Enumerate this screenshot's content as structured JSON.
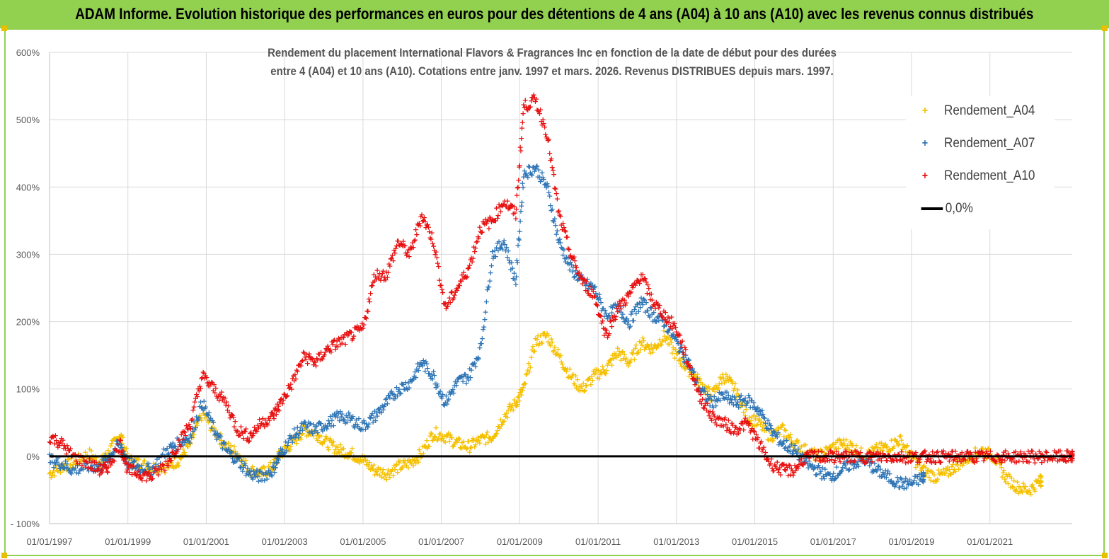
{
  "banner": {
    "title": "ADAM Informe. Evolution historique des performances en euros pour des détentions de 4 ans (A04) à 10 ans (A10) avec les revenus connus distribués"
  },
  "chart_data": {
    "type": "scatter",
    "title_line1": "Rendement du placement International Flavors & Fragrances Inc en fonction de la date de début pour des durées",
    "title_line2": "entre 4 (A04) et 10 ans (A10). Cotations entre janv. 1997 et mars. 2026. Revenus DISTRIBUES depuis mars. 1997.",
    "xlabel": "",
    "ylabel": "",
    "xlim": [
      1997.0,
      2023.1
    ],
    "ylim": [
      -100,
      600
    ],
    "y_ticks": [
      -100,
      0,
      100,
      200,
      300,
      400,
      500,
      600
    ],
    "y_tick_labels": [
      "- 100%",
      "0%",
      "100%",
      "200%",
      "300%",
      "400%",
      "500%",
      "600%"
    ],
    "x_ticks": [
      1997,
      1999,
      2001,
      2003,
      2005,
      2007,
      2009,
      2011,
      2013,
      2015,
      2017,
      2019,
      2021
    ],
    "x_tick_labels": [
      "01/01/1997",
      "01/01/1999",
      "01/01/2001",
      "01/01/2003",
      "01/01/2005",
      "01/01/2007",
      "01/01/2009",
      "01/01/2011",
      "01/01/2013",
      "01/01/2015",
      "01/01/2017",
      "01/01/2019",
      "01/01/2021"
    ],
    "legend_position": "top-right",
    "series": [
      {
        "name": "Rendement_A04",
        "color": "#f5c000",
        "x": [
          1997.0,
          1997.3,
          1997.6,
          1998.0,
          1998.3,
          1998.5,
          1998.8,
          1999.0,
          1999.3,
          1999.6,
          2000.0,
          2000.3,
          2000.6,
          2000.9,
          2001.2,
          2001.5,
          2001.8,
          2002.1,
          2002.4,
          2002.7,
          2002.9,
          2003.2,
          2003.5,
          2003.8,
          2004.1,
          2004.4,
          2004.7,
          2005.0,
          2005.3,
          2005.6,
          2005.9,
          2006.2,
          2006.5,
          2006.8,
          2007.1,
          2007.4,
          2007.7,
          2008.0,
          2008.3,
          2008.6,
          2008.9,
          2009.1,
          2009.4,
          2009.7,
          2010.0,
          2010.3,
          2010.6,
          2010.9,
          2011.2,
          2011.5,
          2011.8,
          2012.1,
          2012.4,
          2012.7,
          2013.0,
          2013.3,
          2013.6,
          2013.9,
          2014.2,
          2014.5,
          2014.8,
          2015.1,
          2015.4,
          2015.7,
          2016.0,
          2016.3,
          2016.6,
          2016.9,
          2017.2,
          2017.5,
          2017.8,
          2018.1,
          2018.4,
          2018.7,
          2019.0,
          2019.3,
          2019.6,
          2019.9,
          2020.2,
          2020.5,
          2020.8,
          2021.1,
          2021.4,
          2021.7,
          2022.0,
          2022.3
        ],
        "y": [
          -25,
          -15,
          -10,
          5,
          -10,
          5,
          35,
          -5,
          -10,
          -15,
          -15,
          -5,
          20,
          65,
          40,
          15,
          5,
          -20,
          -25,
          -15,
          5,
          20,
          40,
          35,
          20,
          10,
          5,
          -5,
          -20,
          -25,
          -15,
          -10,
          5,
          35,
          30,
          20,
          15,
          25,
          30,
          60,
          80,
          100,
          170,
          180,
          150,
          120,
          100,
          120,
          130,
          155,
          140,
          170,
          160,
          180,
          150,
          130,
          110,
          90,
          120,
          100,
          60,
          50,
          30,
          40,
          20,
          10,
          0,
          10,
          20,
          15,
          0,
          10,
          15,
          25,
          0,
          -20,
          -30,
          -25,
          -10,
          0,
          10,
          0,
          -30,
          -45,
          -50,
          -35
        ]
      },
      {
        "name": "Rendement_A07",
        "color": "#2e75b6",
        "x": [
          1997.0,
          1997.3,
          1997.6,
          1998.0,
          1998.3,
          1998.5,
          1998.8,
          1999.0,
          1999.3,
          1999.6,
          2000.0,
          2000.3,
          2000.6,
          2000.9,
          2001.2,
          2001.5,
          2001.8,
          2002.1,
          2002.4,
          2002.7,
          2002.9,
          2003.2,
          2003.5,
          2003.8,
          2004.1,
          2004.4,
          2004.7,
          2005.0,
          2005.3,
          2005.6,
          2005.9,
          2006.2,
          2006.5,
          2006.8,
          2007.1,
          2007.4,
          2007.7,
          2008.0,
          2008.3,
          2008.6,
          2008.9,
          2009.1,
          2009.4,
          2009.7,
          2010.0,
          2010.3,
          2010.6,
          2010.9,
          2011.2,
          2011.5,
          2011.8,
          2012.1,
          2012.4,
          2012.7,
          2013.0,
          2013.3,
          2013.6,
          2013.9,
          2014.2,
          2014.5,
          2014.8,
          2015.1,
          2015.4,
          2015.7,
          2016.0,
          2016.3,
          2016.6,
          2016.9,
          2017.2,
          2017.5,
          2017.8,
          2018.1,
          2018.4,
          2018.7,
          2019.0,
          2019.3
        ],
        "y": [
          -5,
          -10,
          -20,
          -15,
          -15,
          0,
          20,
          -10,
          -15,
          -20,
          10,
          20,
          30,
          80,
          40,
          10,
          -5,
          -25,
          -30,
          -20,
          5,
          30,
          45,
          40,
          50,
          60,
          55,
          45,
          60,
          80,
          100,
          110,
          140,
          120,
          80,
          110,
          120,
          160,
          300,
          320,
          260,
          420,
          430,
          400,
          320,
          280,
          260,
          250,
          210,
          220,
          200,
          230,
          210,
          200,
          170,
          140,
          100,
          80,
          90,
          80,
          85,
          70,
          40,
          20,
          10,
          -10,
          -20,
          -30,
          -20,
          -10,
          -5,
          -20,
          -30,
          -40,
          -40,
          -30
        ]
      },
      {
        "name": "Rendement_A10",
        "color": "#e81010",
        "x": [
          1997.0,
          1997.3,
          1997.6,
          1998.0,
          1998.3,
          1998.5,
          1998.8,
          1999.0,
          1999.3,
          1999.6,
          2000.0,
          2000.3,
          2000.6,
          2000.9,
          2001.2,
          2001.5,
          2001.8,
          2002.1,
          2002.4,
          2002.7,
          2002.9,
          2003.2,
          2003.5,
          2003.8,
          2004.1,
          2004.4,
          2004.7,
          2005.0,
          2005.3,
          2005.6,
          2005.9,
          2006.2,
          2006.5,
          2006.8,
          2007.1,
          2007.4,
          2007.7,
          2008.0,
          2008.3,
          2008.6,
          2008.9,
          2009.1,
          2009.4,
          2009.7,
          2010.0,
          2010.3,
          2010.6,
          2010.9,
          2011.2,
          2011.5,
          2011.8,
          2012.1,
          2012.4,
          2012.7,
          2013.0,
          2013.3,
          2013.6,
          2013.9,
          2014.2,
          2014.5,
          2014.8,
          2015.1,
          2015.4,
          2015.7,
          2016.0,
          2016.3,
          2016.6,
          2016.9,
          2017.2,
          2017.5,
          2017.8,
          2018.1,
          2018.4,
          2018.7,
          2019.0,
          2019.3,
          2019.6,
          2019.9,
          2020.2,
          2020.5,
          2020.8,
          2021.1,
          2021.4,
          2021.7,
          2022.0,
          2022.3,
          2022.6,
          2022.9,
          2023.1
        ],
        "y": [
          30,
          20,
          0,
          -10,
          -20,
          -15,
          20,
          -20,
          -25,
          -30,
          -10,
          20,
          50,
          120,
          100,
          80,
          40,
          30,
          50,
          60,
          80,
          110,
          150,
          140,
          160,
          170,
          180,
          190,
          270,
          270,
          320,
          300,
          360,
          320,
          220,
          250,
          280,
          340,
          350,
          380,
          360,
          520,
          530,
          480,
          360,
          300,
          260,
          240,
          180,
          220,
          240,
          270,
          230,
          210,
          190,
          140,
          90,
          60,
          50,
          40,
          50,
          20,
          -10,
          -20,
          -20,
          0,
          0,
          0,
          0,
          0,
          0,
          0,
          0,
          0,
          0,
          0,
          0,
          0,
          0,
          0,
          0,
          0,
          0,
          0,
          0,
          0,
          0,
          0,
          0
        ]
      }
    ],
    "zero_line": {
      "name": "0,0%",
      "value": 0,
      "color": "#000000"
    }
  }
}
